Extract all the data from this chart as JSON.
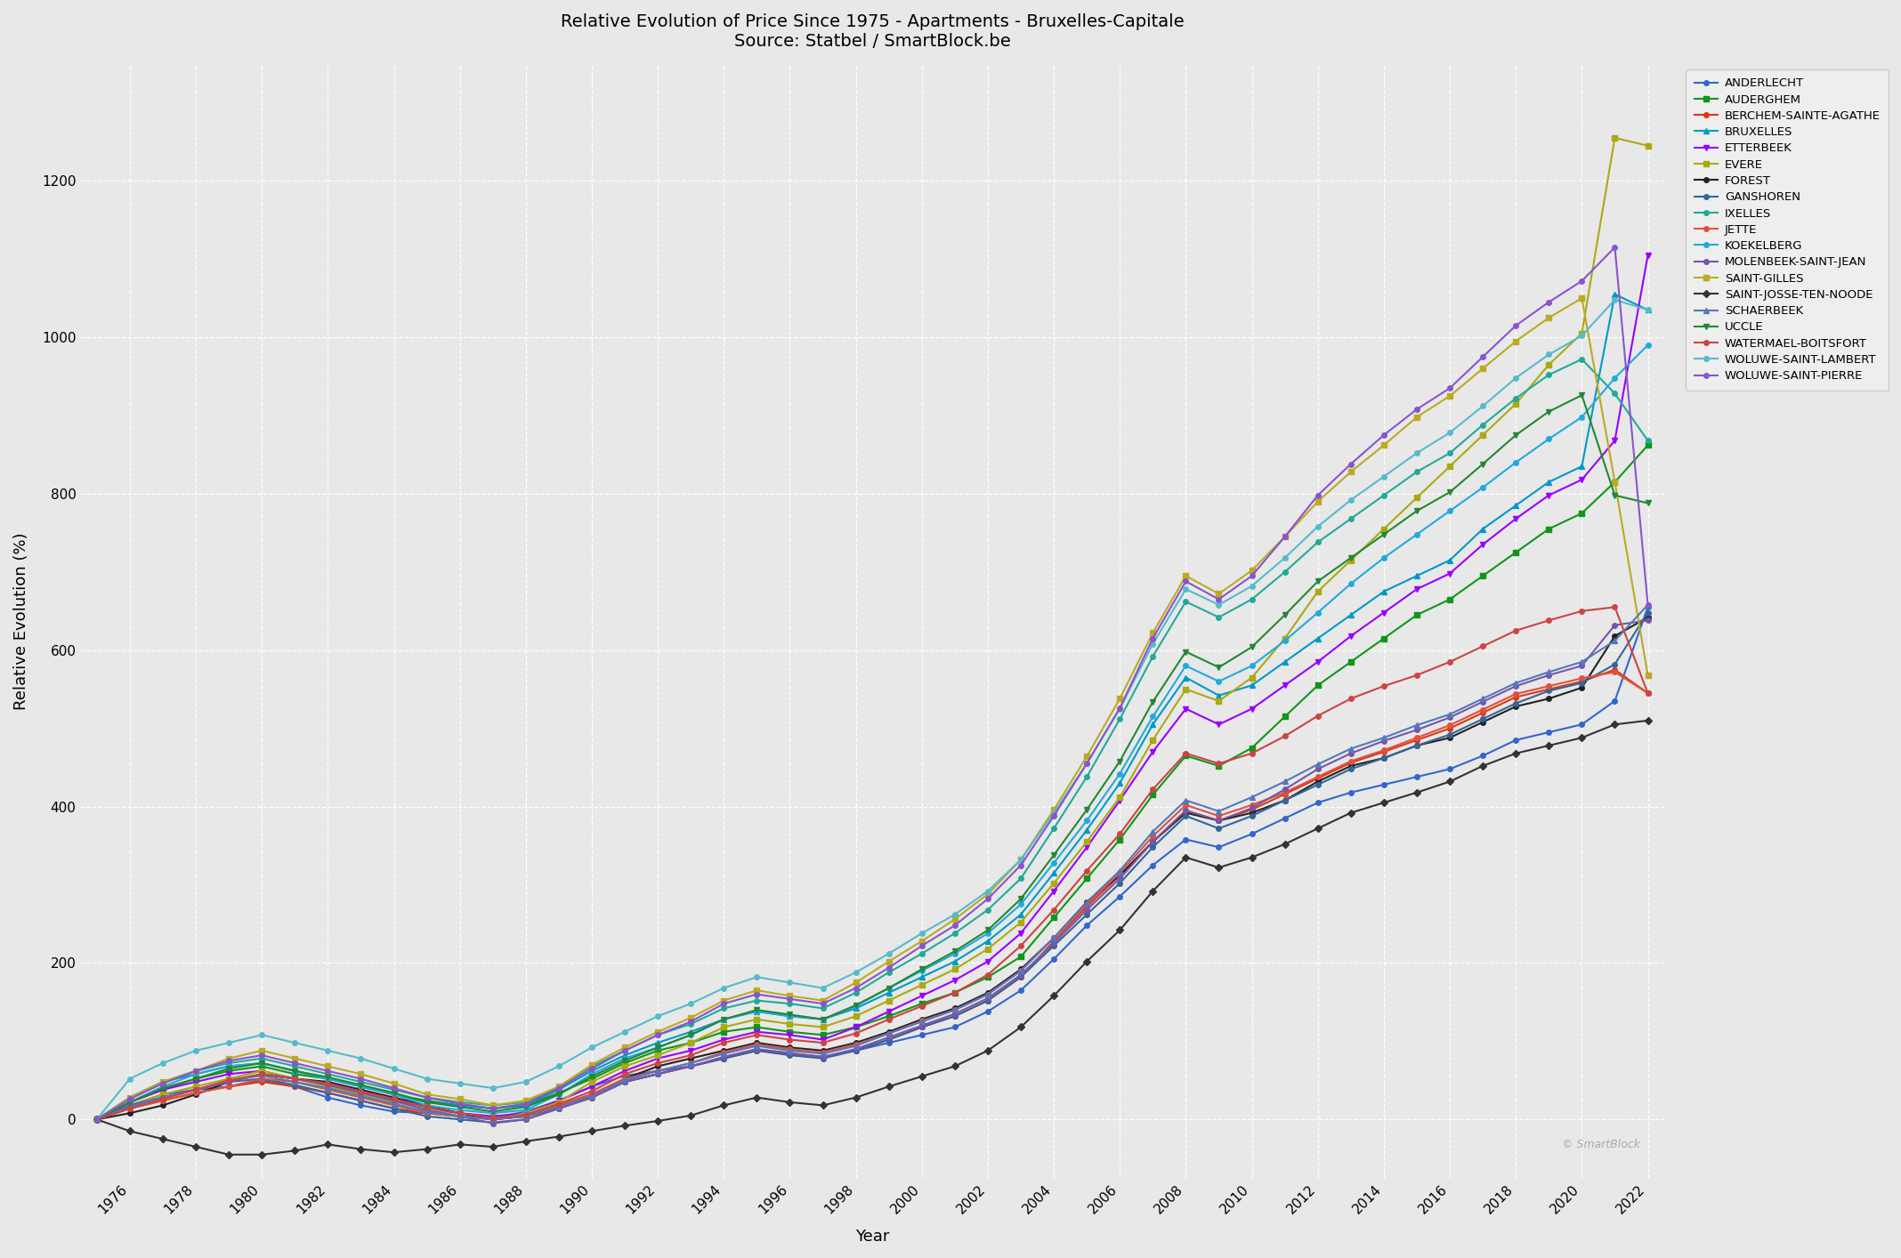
{
  "title": "Relative Evolution of Price Since 1975 - Apartments - Bruxelles-Capitale\nSource: Statbel / SmartBlock.be",
  "xlabel": "Year",
  "ylabel": "Relative Evolution (%)",
  "background_color": "#e8e8e8",
  "years": [
    1975,
    1976,
    1977,
    1978,
    1979,
    1980,
    1981,
    1982,
    1983,
    1984,
    1985,
    1986,
    1987,
    1988,
    1989,
    1990,
    1991,
    1992,
    1993,
    1994,
    1995,
    1996,
    1997,
    1998,
    1999,
    2000,
    2001,
    2002,
    2003,
    2004,
    2005,
    2006,
    2007,
    2008,
    2009,
    2010,
    2011,
    2012,
    2013,
    2014,
    2015,
    2016,
    2017,
    2018,
    2019,
    2020,
    2021,
    2022
  ],
  "series": {
    "ANDERLECHT": {
      "color": "#3366cc",
      "marker": "o",
      "values": [
        0,
        18,
        32,
        38,
        42,
        50,
        42,
        28,
        18,
        10,
        8,
        4,
        2,
        10,
        24,
        42,
        56,
        62,
        68,
        78,
        88,
        84,
        80,
        88,
        98,
        108,
        118,
        138,
        165,
        205,
        248,
        285,
        325,
        358,
        348,
        365,
        385,
        405,
        418,
        428,
        438,
        448,
        465,
        485,
        495,
        505,
        535,
        655
      ]
    },
    "AUDERGHEM": {
      "color": "#109618",
      "marker": "s",
      "values": [
        0,
        22,
        38,
        52,
        62,
        68,
        58,
        52,
        42,
        32,
        24,
        18,
        14,
        18,
        34,
        52,
        72,
        88,
        98,
        112,
        118,
        112,
        108,
        118,
        132,
        148,
        162,
        182,
        208,
        258,
        308,
        358,
        415,
        465,
        452,
        475,
        515,
        555,
        585,
        615,
        645,
        665,
        695,
        725,
        755,
        775,
        815,
        862
      ]
    },
    "BERCHEM-SAINTE-AGATHE": {
      "color": "#dc3912",
      "marker": "o",
      "values": [
        0,
        14,
        24,
        34,
        42,
        48,
        42,
        34,
        24,
        14,
        8,
        4,
        0,
        4,
        14,
        28,
        48,
        58,
        68,
        78,
        88,
        84,
        80,
        88,
        102,
        118,
        132,
        152,
        182,
        228,
        272,
        312,
        355,
        395,
        382,
        396,
        416,
        436,
        456,
        470,
        485,
        500,
        520,
        540,
        550,
        560,
        575,
        545
      ]
    },
    "BRUXELLES": {
      "color": "#0099c6",
      "marker": "^",
      "values": [
        0,
        28,
        48,
        58,
        68,
        72,
        62,
        52,
        42,
        32,
        22,
        18,
        14,
        18,
        38,
        62,
        82,
        98,
        112,
        128,
        138,
        132,
        128,
        142,
        162,
        182,
        202,
        228,
        262,
        315,
        370,
        430,
        505,
        565,
        542,
        555,
        585,
        615,
        645,
        675,
        695,
        715,
        755,
        785,
        815,
        835,
        1055,
        1035
      ]
    },
    "ETTERBEEK": {
      "color": "#9900ff",
      "marker": "v",
      "values": [
        0,
        22,
        38,
        48,
        58,
        62,
        52,
        44,
        34,
        24,
        14,
        8,
        4,
        8,
        24,
        42,
        62,
        78,
        88,
        102,
        112,
        108,
        102,
        118,
        138,
        158,
        178,
        202,
        238,
        292,
        348,
        408,
        470,
        525,
        505,
        525,
        555,
        585,
        618,
        648,
        678,
        698,
        735,
        768,
        798,
        818,
        868,
        1105
      ]
    },
    "EVERE": {
      "color": "#aaaa11",
      "marker": "s",
      "values": [
        0,
        18,
        32,
        42,
        52,
        62,
        52,
        42,
        32,
        22,
        14,
        4,
        0,
        8,
        22,
        48,
        68,
        82,
        98,
        118,
        128,
        122,
        118,
        132,
        152,
        172,
        192,
        218,
        252,
        302,
        355,
        412,
        485,
        550,
        535,
        565,
        615,
        675,
        715,
        755,
        795,
        835,
        875,
        915,
        965,
        1005,
        1255,
        1245
      ]
    },
    "FOREST": {
      "color": "#222222",
      "marker": "o",
      "values": [
        0,
        8,
        18,
        32,
        48,
        58,
        52,
        48,
        38,
        28,
        18,
        8,
        0,
        4,
        18,
        32,
        52,
        68,
        78,
        88,
        98,
        92,
        88,
        98,
        112,
        128,
        142,
        162,
        192,
        232,
        278,
        312,
        355,
        392,
        382,
        392,
        408,
        432,
        452,
        462,
        478,
        488,
        508,
        528,
        538,
        552,
        618,
        642
      ]
    },
    "GANSHOREN": {
      "color": "#336699",
      "marker": "o",
      "values": [
        0,
        18,
        28,
        38,
        48,
        52,
        44,
        34,
        24,
        14,
        4,
        0,
        -4,
        0,
        14,
        28,
        48,
        58,
        68,
        78,
        88,
        82,
        78,
        88,
        102,
        118,
        132,
        152,
        182,
        222,
        262,
        302,
        348,
        388,
        372,
        388,
        408,
        428,
        448,
        462,
        478,
        492,
        512,
        532,
        548,
        558,
        582,
        648
      ]
    },
    "IXELLES": {
      "color": "#22aa99",
      "marker": "o",
      "values": [
        0,
        28,
        48,
        62,
        72,
        78,
        68,
        58,
        48,
        38,
        28,
        22,
        18,
        22,
        42,
        68,
        88,
        108,
        122,
        142,
        152,
        148,
        142,
        162,
        188,
        212,
        238,
        268,
        308,
        372,
        438,
        512,
        592,
        662,
        642,
        665,
        700,
        738,
        768,
        798,
        828,
        852,
        888,
        922,
        952,
        972,
        928,
        868
      ]
    },
    "JETTE": {
      "color": "#e05040",
      "marker": "o",
      "values": [
        0,
        14,
        24,
        34,
        42,
        52,
        48,
        38,
        28,
        18,
        8,
        4,
        0,
        4,
        18,
        32,
        52,
        62,
        72,
        86,
        96,
        90,
        86,
        96,
        110,
        126,
        140,
        160,
        190,
        232,
        275,
        315,
        362,
        402,
        388,
        402,
        418,
        438,
        458,
        472,
        488,
        504,
        524,
        544,
        554,
        564,
        572,
        545
      ]
    },
    "KOEKELBERG": {
      "color": "#22aadd",
      "marker": "o",
      "values": [
        0,
        22,
        42,
        58,
        68,
        72,
        62,
        52,
        42,
        32,
        18,
        12,
        8,
        12,
        32,
        58,
        78,
        92,
        108,
        128,
        138,
        132,
        128,
        145,
        168,
        190,
        212,
        238,
        275,
        328,
        382,
        442,
        515,
        580,
        560,
        580,
        612,
        648,
        685,
        718,
        748,
        778,
        808,
        840,
        870,
        898,
        948,
        990
      ]
    },
    "MOLENBEEK-SAINT-JEAN": {
      "color": "#7755aa",
      "marker": "o",
      "values": [
        0,
        18,
        28,
        38,
        48,
        58,
        52,
        44,
        34,
        24,
        12,
        4,
        -5,
        0,
        14,
        28,
        48,
        58,
        68,
        80,
        90,
        85,
        80,
        90,
        105,
        120,
        135,
        155,
        185,
        225,
        268,
        308,
        355,
        395,
        382,
        398,
        422,
        448,
        468,
        484,
        498,
        514,
        534,
        554,
        568,
        580,
        632,
        638
      ]
    },
    "SAINT-GILLES": {
      "color": "#bbaa22",
      "marker": "s",
      "values": [
        0,
        28,
        48,
        62,
        78,
        88,
        78,
        68,
        58,
        46,
        32,
        26,
        18,
        24,
        42,
        70,
        92,
        112,
        130,
        152,
        165,
        158,
        152,
        175,
        202,
        228,
        256,
        288,
        332,
        396,
        464,
        538,
        622,
        695,
        672,
        702,
        745,
        790,
        828,
        862,
        898,
        925,
        960,
        995,
        1025,
        1050,
        815,
        568
      ]
    },
    "SAINT-JOSSE-TEN-NOODE": {
      "color": "#333333",
      "marker": "D",
      "values": [
        0,
        -15,
        -25,
        -35,
        -45,
        -45,
        -40,
        -32,
        -38,
        -42,
        -38,
        -32,
        -35,
        -28,
        -22,
        -15,
        -8,
        -2,
        5,
        18,
        28,
        22,
        18,
        28,
        42,
        55,
        68,
        88,
        118,
        158,
        202,
        242,
        292,
        335,
        322,
        335,
        352,
        372,
        392,
        405,
        418,
        432,
        452,
        468,
        478,
        488,
        505,
        510
      ]
    },
    "SCHAERBEEK": {
      "color": "#5577bb",
      "marker": "^",
      "values": [
        0,
        16,
        28,
        38,
        50,
        56,
        48,
        40,
        30,
        20,
        10,
        4,
        0,
        4,
        16,
        30,
        50,
        62,
        72,
        84,
        94,
        88,
        84,
        94,
        110,
        125,
        140,
        160,
        190,
        232,
        278,
        318,
        368,
        408,
        394,
        412,
        432,
        454,
        474,
        488,
        504,
        518,
        538,
        558,
        572,
        585,
        612,
        658
      ]
    },
    "UCCLE": {
      "color": "#228833",
      "marker": "v",
      "values": [
        0,
        22,
        40,
        52,
        65,
        72,
        62,
        54,
        44,
        34,
        22,
        16,
        10,
        16,
        32,
        55,
        75,
        92,
        108,
        128,
        140,
        134,
        128,
        146,
        168,
        192,
        215,
        242,
        282,
        338,
        396,
        458,
        534,
        598,
        578,
        604,
        645,
        688,
        718,
        748,
        778,
        802,
        838,
        875,
        905,
        926,
        798,
        788
      ]
    },
    "WATERMAEL-BOITSFORT": {
      "color": "#cc4444",
      "marker": "o",
      "values": [
        0,
        14,
        26,
        38,
        50,
        58,
        52,
        46,
        36,
        26,
        16,
        8,
        2,
        6,
        20,
        36,
        58,
        72,
        82,
        98,
        108,
        102,
        98,
        110,
        128,
        145,
        162,
        185,
        222,
        268,
        318,
        365,
        422,
        468,
        455,
        468,
        490,
        516,
        538,
        554,
        568,
        585,
        605,
        625,
        638,
        650,
        655,
        545
      ]
    },
    "WOLUWE-SAINT-LAMBERT": {
      "color": "#55bbcc",
      "marker": "o",
      "values": [
        0,
        52,
        72,
        88,
        98,
        108,
        98,
        88,
        78,
        65,
        52,
        46,
        40,
        48,
        68,
        92,
        112,
        132,
        148,
        168,
        182,
        175,
        168,
        188,
        212,
        238,
        262,
        292,
        332,
        392,
        455,
        525,
        608,
        678,
        658,
        682,
        718,
        758,
        792,
        822,
        852,
        878,
        912,
        948,
        978,
        1002,
        1048,
        1035
      ]
    },
    "WOLUWE-SAINT-PIERRE": {
      "color": "#8855cc",
      "marker": "o",
      "values": [
        0,
        26,
        46,
        62,
        75,
        82,
        72,
        62,
        52,
        40,
        28,
        20,
        14,
        20,
        40,
        65,
        88,
        108,
        125,
        148,
        160,
        154,
        148,
        168,
        194,
        222,
        248,
        282,
        325,
        388,
        455,
        526,
        615,
        688,
        665,
        695,
        745,
        798,
        838,
        875,
        908,
        935,
        975,
        1015,
        1045,
        1072,
        1115,
        658
      ]
    }
  },
  "yticks": [
    0,
    200,
    400,
    600,
    800,
    1000,
    1200
  ],
  "ylim": [
    -75,
    1350
  ],
  "xlim": [
    1975,
    2022
  ],
  "watermark": "© SmartBlock"
}
